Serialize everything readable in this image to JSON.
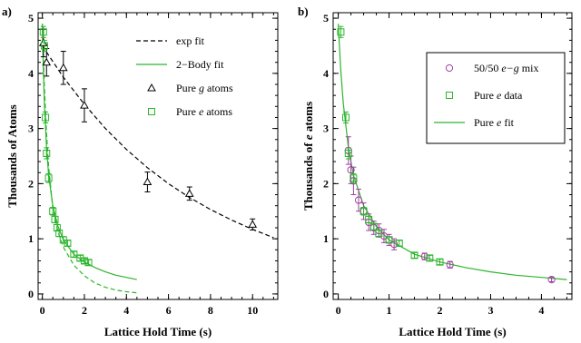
{
  "chart_data": [
    {
      "panel_label": "a)",
      "type": "scatter",
      "xlabel": "Lattice Hold Time (s)",
      "ylabel": "Thousands of Atoms",
      "xlim": [
        -0.2,
        11.2
      ],
      "ylim": [
        -0.1,
        5.1
      ],
      "xticks": [
        0,
        2,
        4,
        6,
        8,
        10
      ],
      "yticks": [
        0,
        1,
        2,
        3,
        4,
        5
      ],
      "legend_position": "top-right",
      "series": [
        {
          "name": "Pure g atoms",
          "kind": "points",
          "marker": "triangle",
          "color": "#000000",
          "points": [
            {
              "x": 0.05,
              "y": 4.55,
              "err": 0.25
            },
            {
              "x": 0.2,
              "y": 4.2,
              "err": 0.25
            },
            {
              "x": 1.0,
              "y": 4.1,
              "err": 0.3
            },
            {
              "x": 2.0,
              "y": 3.42,
              "err": 0.3
            },
            {
              "x": 5.0,
              "y": 2.03,
              "err": 0.18
            },
            {
              "x": 7.0,
              "y": 1.82,
              "err": 0.12
            },
            {
              "x": 10.0,
              "y": 1.26,
              "err": 0.1
            }
          ]
        },
        {
          "name": "Pure e atoms",
          "kind": "points",
          "marker": "square",
          "color": "#2db52d",
          "points": [
            {
              "x": 0.05,
              "y": 4.75,
              "err": 0.1
            },
            {
              "x": 0.1,
              "y": 4.5,
              "err": 0.1
            },
            {
              "x": 0.15,
              "y": 3.2,
              "err": 0.1
            },
            {
              "x": 0.2,
              "y": 2.55,
              "err": 0.1
            },
            {
              "x": 0.3,
              "y": 2.1,
              "err": 0.08
            },
            {
              "x": 0.5,
              "y": 1.5,
              "err": 0.07
            },
            {
              "x": 0.6,
              "y": 1.35,
              "err": 0.06
            },
            {
              "x": 0.7,
              "y": 1.2,
              "err": 0.06
            },
            {
              "x": 0.8,
              "y": 1.1,
              "err": 0.06
            },
            {
              "x": 1.0,
              "y": 0.98,
              "err": 0.06
            },
            {
              "x": 1.2,
              "y": 0.92,
              "err": 0.05
            },
            {
              "x": 1.5,
              "y": 0.72,
              "err": 0.05
            },
            {
              "x": 1.8,
              "y": 0.65,
              "err": 0.05
            },
            {
              "x": 2.0,
              "y": 0.6,
              "err": 0.05
            },
            {
              "x": 2.2,
              "y": 0.57,
              "err": 0.05
            }
          ]
        },
        {
          "name": "exp fit",
          "kind": "line",
          "dash": true,
          "color": "#000000",
          "x": [
            0.0,
            1,
            2,
            3,
            4,
            5,
            6,
            7,
            8,
            9,
            10,
            11
          ],
          "y": [
            4.5,
            3.93,
            3.44,
            3.0,
            2.62,
            2.29,
            2.0,
            1.75,
            1.53,
            1.34,
            1.17,
            1.02
          ]
        },
        {
          "name": "2-Body fit",
          "kind": "line",
          "dash": false,
          "color": "#2db52d",
          "x": [
            0.0,
            0.05,
            0.1,
            0.2,
            0.3,
            0.5,
            0.75,
            1.0,
            1.5,
            2.0,
            2.5,
            3.0,
            3.5,
            4.0,
            4.5
          ],
          "y": [
            4.9,
            4.05,
            3.45,
            2.65,
            2.15,
            1.6,
            1.22,
            0.98,
            0.72,
            0.58,
            0.48,
            0.4,
            0.34,
            0.3,
            0.26
          ]
        },
        {
          "name": "",
          "kind": "line",
          "dash": true,
          "color": "#2db52d",
          "x": [
            0.0,
            0.05,
            0.1,
            0.2,
            0.3,
            0.5,
            0.75,
            1.0,
            1.5,
            2.0,
            2.5,
            3.0,
            3.5,
            4.0,
            4.5
          ],
          "y": [
            4.9,
            4.3,
            3.75,
            2.9,
            2.3,
            1.55,
            1.12,
            0.85,
            0.52,
            0.33,
            0.2,
            0.12,
            0.07,
            0.04,
            0.02
          ]
        }
      ],
      "legend": [
        {
          "label": "exp fit",
          "symbol": "dash-line",
          "color": "#000000"
        },
        {
          "label": "2−Body fit",
          "symbol": "line",
          "color": "#2db52d"
        },
        {
          "label": "Pure g atoms",
          "symbol": "triangle",
          "color": "#000000"
        },
        {
          "label": "Pure e atoms",
          "symbol": "square",
          "color": "#2db52d"
        }
      ]
    },
    {
      "panel_label": "b)",
      "type": "scatter",
      "xlabel": "Lattice Hold Time (s)",
      "ylabel": "Thousands of e atoms",
      "xlim": [
        -0.1,
        4.6
      ],
      "ylim": [
        -0.1,
        5.1
      ],
      "xticks": [
        0,
        1,
        2,
        3,
        4
      ],
      "yticks": [
        0,
        1,
        2,
        3,
        4,
        5
      ],
      "legend_position": "top-right",
      "series": [
        {
          "name": "50/50 e−g mix",
          "kind": "points",
          "marker": "circle",
          "color": "#a040a0",
          "points": [
            {
              "x": 0.2,
              "y": 2.6,
              "err": 0.25
            },
            {
              "x": 0.25,
              "y": 2.25,
              "err": 0.25
            },
            {
              "x": 0.3,
              "y": 2.05,
              "err": 0.25
            },
            {
              "x": 0.4,
              "y": 1.7,
              "err": 0.2
            },
            {
              "x": 0.5,
              "y": 1.5,
              "err": 0.15
            },
            {
              "x": 0.6,
              "y": 1.3,
              "err": 0.15
            },
            {
              "x": 0.7,
              "y": 1.2,
              "err": 0.12
            },
            {
              "x": 0.8,
              "y": 1.15,
              "err": 0.12
            },
            {
              "x": 0.9,
              "y": 1.05,
              "err": 0.12
            },
            {
              "x": 1.0,
              "y": 0.98,
              "err": 0.1
            },
            {
              "x": 1.1,
              "y": 0.9,
              "err": 0.1
            },
            {
              "x": 1.7,
              "y": 0.68,
              "err": 0.06
            },
            {
              "x": 2.2,
              "y": 0.53,
              "err": 0.06
            },
            {
              "x": 4.2,
              "y": 0.26,
              "err": 0.04
            }
          ]
        },
        {
          "name": "Pure e data",
          "kind": "points",
          "marker": "square",
          "color": "#2db52d",
          "points": [
            {
              "x": 0.05,
              "y": 4.75,
              "err": 0.1
            },
            {
              "x": 0.15,
              "y": 3.2,
              "err": 0.1
            },
            {
              "x": 0.2,
              "y": 2.55,
              "err": 0.1
            },
            {
              "x": 0.3,
              "y": 2.1,
              "err": 0.08
            },
            {
              "x": 0.5,
              "y": 1.5,
              "err": 0.07
            },
            {
              "x": 0.6,
              "y": 1.35,
              "err": 0.06
            },
            {
              "x": 0.7,
              "y": 1.22,
              "err": 0.06
            },
            {
              "x": 0.8,
              "y": 1.1,
              "err": 0.06
            },
            {
              "x": 1.0,
              "y": 0.98,
              "err": 0.06
            },
            {
              "x": 1.2,
              "y": 0.92,
              "err": 0.05
            },
            {
              "x": 1.5,
              "y": 0.7,
              "err": 0.05
            },
            {
              "x": 1.8,
              "y": 0.65,
              "err": 0.05
            },
            {
              "x": 2.0,
              "y": 0.58,
              "err": 0.05
            }
          ]
        },
        {
          "name": "Pure e fit",
          "kind": "line",
          "dash": false,
          "color": "#2db52d",
          "x": [
            0.0,
            0.05,
            0.1,
            0.2,
            0.3,
            0.5,
            0.75,
            1.0,
            1.5,
            2.0,
            2.5,
            3.0,
            3.5,
            4.0,
            4.5
          ],
          "y": [
            4.9,
            4.05,
            3.45,
            2.65,
            2.15,
            1.6,
            1.22,
            0.98,
            0.72,
            0.58,
            0.48,
            0.4,
            0.34,
            0.3,
            0.26
          ]
        }
      ],
      "legend": [
        {
          "label": "50/50 e−g mix",
          "symbol": "circle",
          "color": "#a040a0"
        },
        {
          "label": "Pure e data",
          "symbol": "square",
          "color": "#2db52d"
        },
        {
          "label": "Pure e fit",
          "symbol": "line",
          "color": "#2db52d"
        }
      ]
    }
  ]
}
